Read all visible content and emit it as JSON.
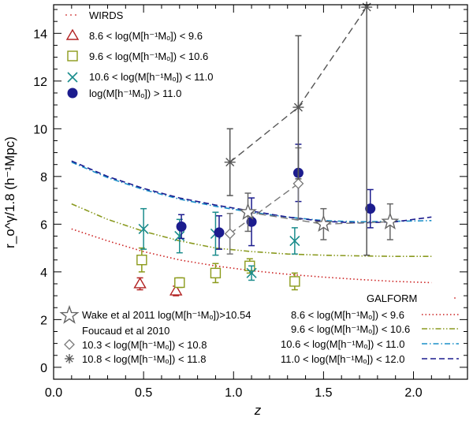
{
  "chart_data": {
    "type": "scatter",
    "xlabel": "z",
    "ylabel": "r_o^γ/1.8 (h⁻¹Mpc)",
    "xlim": [
      0.0,
      2.3
    ],
    "ylim": [
      -0.5,
      15.2
    ],
    "x_ticks": [
      "0.0",
      "0.5",
      "1.0",
      "1.5",
      "2.0"
    ],
    "y_ticks": [
      "0",
      "2",
      "4",
      "6",
      "8",
      "10",
      "12",
      "14"
    ],
    "legend_top": {
      "title": "WIRDS",
      "entries": [
        "8.6 < log(M[h⁻¹Mₒ]) <  9.6",
        "9.6 < log(M[h⁻¹Mₒ]) < 10.6",
        "10.6 < log(M[h⁻¹Mₒ]) < 11.0",
        "log(M[h⁻¹Mₒ]) > 11.0"
      ]
    },
    "legend_bottom_left": {
      "wake": "Wake et al 2011 log(M[h⁻¹Mₒ])>10.54",
      "foucaud": "Foucaud et al 2010",
      "f1": "10.3 < log(M[h⁻¹Mₒ]) < 10.8",
      "f2": "10.8 < log(M[h⁻¹Mₒ]) < 11.8"
    },
    "legend_bottom_right": {
      "title": "GALFORM",
      "entries": [
        "8.6 < log(M[h⁻¹Mₒ]) <  9.6",
        "9.6 < log(M[h⁻¹Mₒ]) < 10.6",
        "10.6 < log(M[h⁻¹Mₒ]) < 11.0",
        "11.0 < log(M[h⁻¹Mₒ]) < 12.0"
      ]
    },
    "series": [
      {
        "marker": "triangle",
        "color": "#b22222",
        "points": [
          [
            0.48,
            3.5,
            0.25,
            0.25
          ],
          [
            0.68,
            3.2,
            0.2,
            0.2
          ]
        ]
      },
      {
        "marker": "square",
        "color": "#8b9a1a",
        "points": [
          [
            0.49,
            4.5,
            0.5,
            0.5
          ],
          [
            0.7,
            3.55,
            0.2,
            0.2
          ],
          [
            0.9,
            3.95,
            0.4,
            0.4
          ],
          [
            1.09,
            4.25,
            0.3,
            0.3
          ],
          [
            1.34,
            3.6,
            0.35,
            0.35
          ]
        ]
      },
      {
        "marker": "x",
        "color": "#1a8c8c",
        "points": [
          [
            0.5,
            5.8,
            0.85,
            0.85
          ],
          [
            0.7,
            5.5,
            0.7,
            0.7
          ],
          [
            0.9,
            5.6,
            0.9,
            0.9
          ],
          [
            1.1,
            3.95,
            0.3,
            0.3
          ],
          [
            1.34,
            5.3,
            0.55,
            0.55
          ]
        ]
      },
      {
        "marker": "circle",
        "color": "#1c1c8e",
        "points": [
          [
            0.71,
            5.9,
            0.5,
            0.5
          ],
          [
            0.92,
            5.65,
            0.7,
            0.7
          ],
          [
            1.1,
            6.1,
            1.0,
            1.0
          ],
          [
            1.36,
            8.15,
            1.2,
            1.2
          ],
          [
            1.76,
            6.65,
            0.8,
            0.8
          ]
        ]
      },
      {
        "marker": "star",
        "color": "#666666",
        "points": [
          [
            1.08,
            6.5,
            0.8,
            0.8
          ],
          [
            1.5,
            6.0,
            0.65,
            0.65
          ],
          [
            1.87,
            6.1,
            0.75,
            0.75
          ]
        ]
      },
      {
        "marker": "diamond",
        "color": "#777777",
        "points": [
          [
            0.98,
            5.6,
            0.85,
            0.85
          ],
          [
            1.36,
            7.7,
            1.5,
            1.5
          ]
        ]
      },
      {
        "marker": "asterisk",
        "color": "#555555",
        "points": [
          [
            0.98,
            8.6,
            1.4,
            1.4
          ],
          [
            1.36,
            10.9,
            3.0,
            3.0
          ],
          [
            1.74,
            15.1,
            10.4,
            4.0
          ]
        ]
      }
    ],
    "connected": [
      {
        "color": "#777777",
        "points": [
          [
            1.08,
            6.5
          ],
          [
            1.5,
            6.0
          ],
          [
            1.87,
            6.1
          ]
        ]
      },
      {
        "color": "#777777",
        "points": [
          [
            0.98,
            5.6
          ],
          [
            1.36,
            7.7
          ]
        ]
      },
      {
        "color": "#555555",
        "points": [
          [
            0.98,
            8.6
          ],
          [
            1.36,
            10.9
          ],
          [
            1.74,
            15.1
          ]
        ]
      }
    ],
    "model_lines": [
      {
        "style": "dotted",
        "color": "#cc2222",
        "x": [
          0.1,
          0.3,
          0.5,
          0.7,
          0.9,
          1.1,
          1.3,
          1.5,
          1.7,
          1.9,
          2.1
        ],
        "y": [
          5.8,
          5.3,
          4.85,
          4.5,
          4.25,
          4.05,
          3.9,
          3.78,
          3.68,
          3.6,
          3.55
        ]
      },
      {
        "style": "dashdotdot",
        "color": "#8a9a20",
        "x": [
          0.1,
          0.3,
          0.5,
          0.7,
          0.9,
          1.1,
          1.3,
          1.5,
          1.7,
          1.9,
          2.1
        ],
        "y": [
          6.85,
          6.2,
          5.7,
          5.3,
          5.0,
          4.85,
          4.75,
          4.7,
          4.67,
          4.65,
          4.65
        ]
      },
      {
        "style": "dashdot",
        "color": "#1a8fc8",
        "x": [
          0.1,
          0.3,
          0.5,
          0.7,
          0.9,
          1.1,
          1.3,
          1.5,
          1.7,
          1.9,
          2.1
        ],
        "y": [
          8.6,
          7.95,
          7.45,
          7.05,
          6.75,
          6.5,
          6.3,
          6.15,
          6.1,
          6.12,
          6.15
        ]
      },
      {
        "style": "dashed",
        "color": "#1c1c8e",
        "x": [
          0.1,
          0.3,
          0.5,
          0.7,
          0.9,
          1.1,
          1.3,
          1.5,
          1.7,
          1.9,
          2.1
        ],
        "y": [
          8.65,
          8.0,
          7.5,
          7.1,
          6.8,
          6.55,
          6.3,
          6.12,
          6.05,
          6.1,
          6.3
        ]
      }
    ]
  }
}
